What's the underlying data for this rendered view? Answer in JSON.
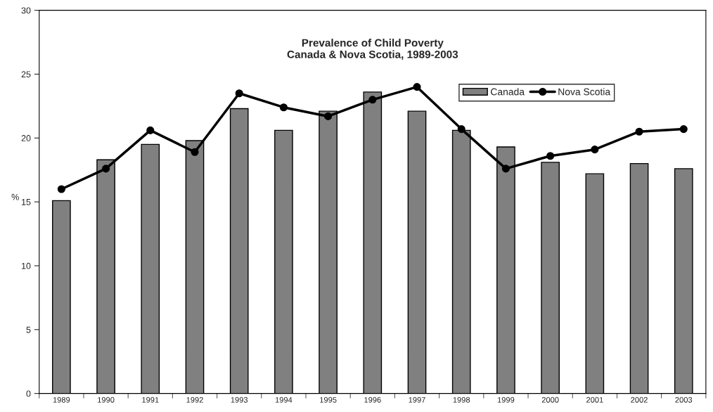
{
  "chart_data": {
    "type": "bar",
    "title": "Prevalence of Child Poverty\nCanada & Nova Scotia, 1989-2003",
    "ylabel": "%",
    "categories": [
      "1989",
      "1990",
      "1991",
      "1992",
      "1993",
      "1994",
      "1995",
      "1996",
      "1997",
      "1998",
      "1999",
      "2000",
      "2001",
      "2002",
      "2003"
    ],
    "series": [
      {
        "name": "Canada",
        "color": "#808080",
        "values": [
          15.1,
          18.3,
          19.5,
          19.8,
          22.3,
          20.6,
          22.1,
          23.6,
          22.1,
          20.6,
          19.3,
          18.1,
          17.2,
          18.0,
          17.6
        ]
      },
      {
        "name": "Nova Scotia",
        "type": "line",
        "color": "#000000",
        "marker": "circle",
        "values": [
          16.0,
          17.6,
          20.6,
          18.9,
          23.5,
          22.4,
          21.7,
          23.0,
          24.0,
          20.7,
          17.6,
          18.6,
          19.1,
          20.5,
          20.7
        ]
      }
    ],
    "ylim": [
      0,
      30
    ],
    "yticks": [
      0,
      5,
      10,
      15,
      20,
      25,
      30
    ],
    "grid": false,
    "legend": "top right"
  }
}
